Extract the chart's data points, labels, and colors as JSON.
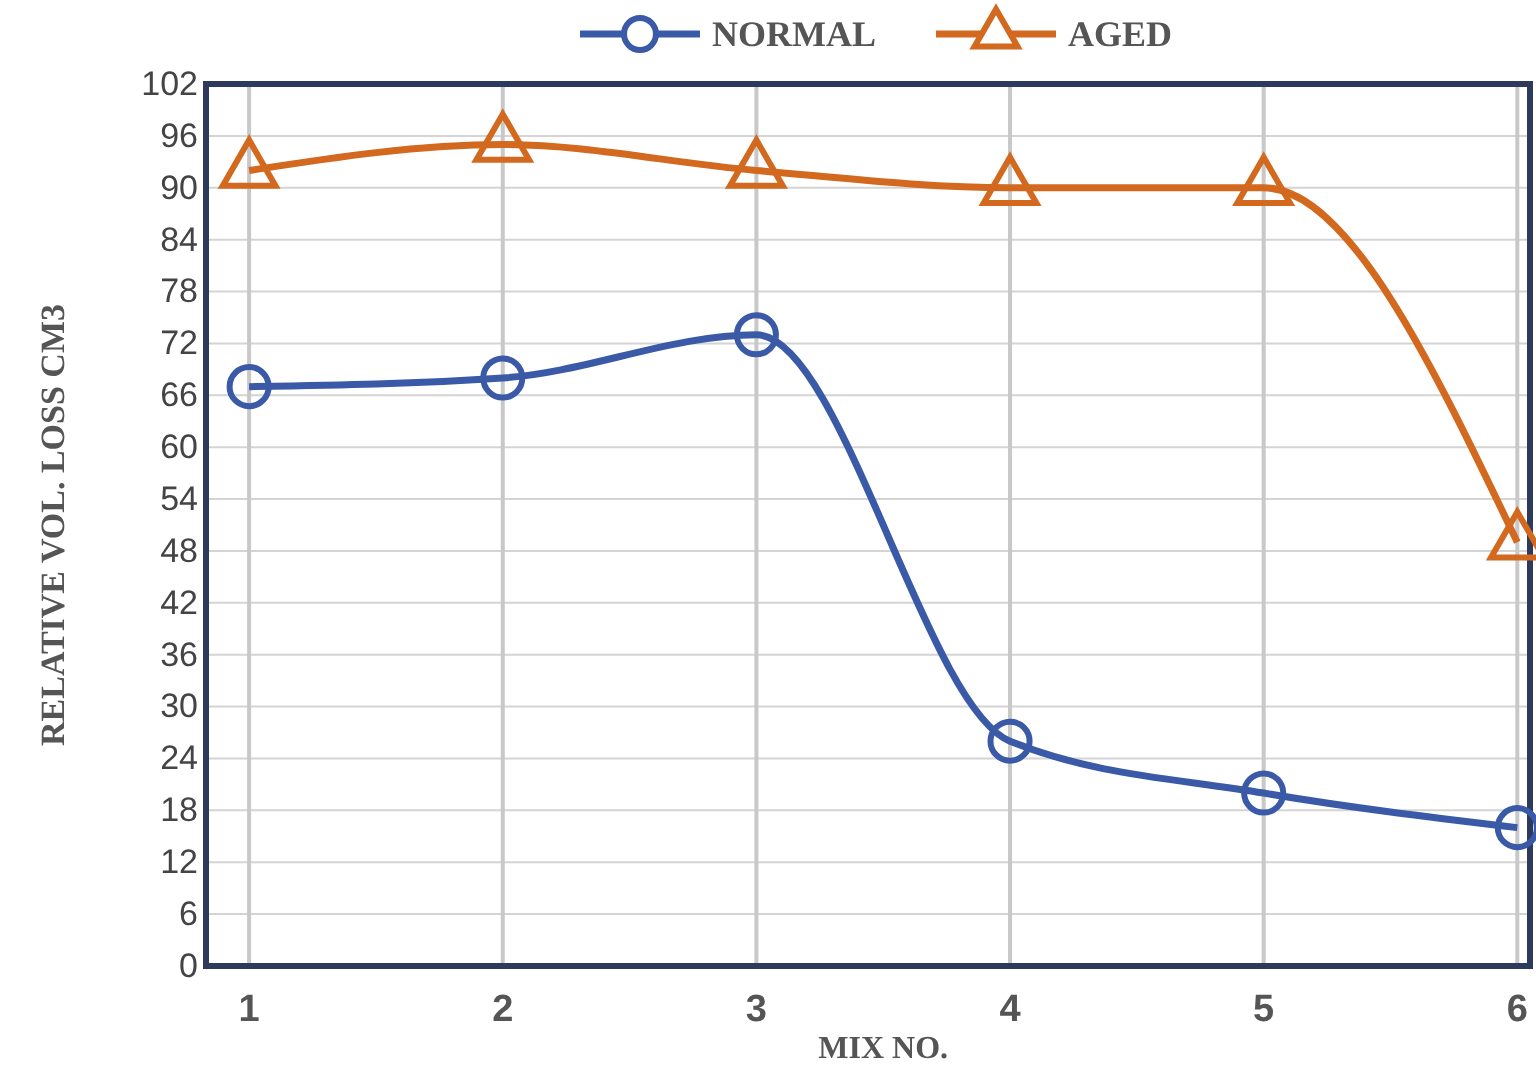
{
  "chart_data": {
    "type": "line",
    "xlabel": "MIX NO.",
    "ylabel": "RELATIVE VOL. LOSS CM3",
    "x": [
      1,
      2,
      3,
      4,
      5,
      6
    ],
    "xlim": [
      0.83,
      6.05
    ],
    "xticks": [
      1,
      2,
      3,
      4,
      5,
      6
    ],
    "ylim": [
      0,
      102
    ],
    "yticks": [
      0,
      6,
      12,
      18,
      24,
      30,
      36,
      42,
      48,
      54,
      60,
      66,
      72,
      78,
      84,
      90,
      96,
      102
    ],
    "grid": true,
    "legend": "top",
    "line_style": "solid",
    "series": [
      {
        "name": "NORMAL",
        "color": "#3a5aa8",
        "marker": "circle",
        "values": [
          67,
          68,
          73,
          26,
          20,
          16
        ]
      },
      {
        "name": "AGED",
        "color": "#d2691e",
        "marker": "triangle",
        "values": [
          92,
          95,
          92,
          90,
          90,
          49
        ]
      }
    ]
  }
}
